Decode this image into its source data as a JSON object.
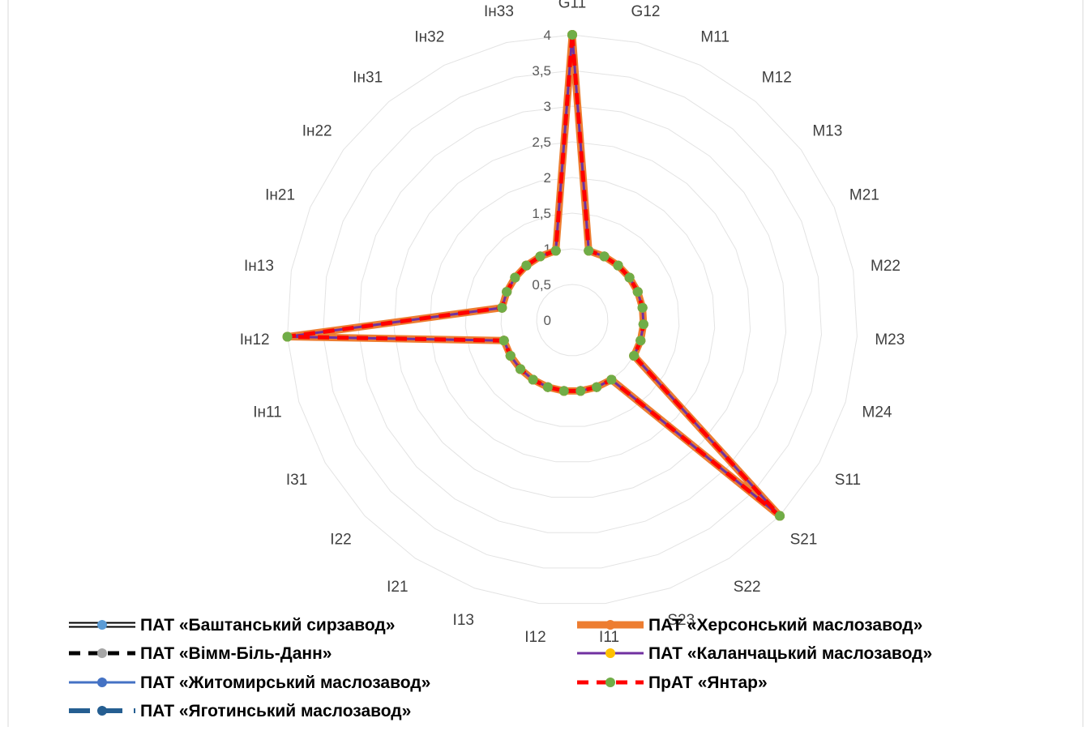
{
  "chart_data": {
    "type": "radar",
    "title": "",
    "axes": [
      "G11",
      "G12",
      "M11",
      "M12",
      "M13",
      "M21",
      "M22",
      "M23",
      "M24",
      "S11",
      "S21",
      "S22",
      "S23",
      "I11",
      "I12",
      "I13",
      "I21",
      "I22",
      "I31",
      "Ін11",
      "Ін12",
      "Ін13",
      "Ін21",
      "Ін22",
      "Ін31",
      "Ін32",
      "Ін33"
    ],
    "rlim": [
      0,
      4
    ],
    "ticks": [
      "0",
      "0,5",
      "1",
      "1,5",
      "2",
      "2,5",
      "3",
      "3,5",
      "4"
    ],
    "tick_values": [
      0,
      0.5,
      1,
      1.5,
      2,
      2.5,
      3,
      3.5,
      4
    ],
    "grid": true,
    "legend_position": "bottom",
    "series": [
      {
        "name": "ПАТ «Баштанський сирзавод»",
        "color": "#000000",
        "style": "double",
        "marker_color": "#5b9bd5",
        "values": [
          4,
          1,
          1,
          1,
          1,
          1,
          1,
          1,
          1,
          1,
          4,
          1,
          1,
          1,
          1,
          1,
          1,
          1,
          1,
          1,
          4,
          1,
          1,
          1,
          1,
          1,
          1
        ]
      },
      {
        "name": "ПАТ «Вімм-Біль-Данн»",
        "color": "#000000",
        "style": "dash",
        "marker_color": "#a5a5a5",
        "values": [
          4,
          1,
          1,
          1,
          1,
          1,
          1,
          1,
          1,
          1,
          4,
          1,
          1,
          1,
          1,
          1,
          1,
          1,
          1,
          1,
          4,
          1,
          1,
          1,
          1,
          1,
          1
        ]
      },
      {
        "name": "ПАТ «Житомирський маслозавод»",
        "color": "#4472c4",
        "style": "solid",
        "marker_color": "#4472c4",
        "values": [
          4,
          1,
          1,
          1,
          1,
          1,
          1,
          1,
          1,
          1,
          4,
          1,
          1,
          1,
          1,
          1,
          1,
          1,
          1,
          1,
          4,
          1,
          1,
          1,
          1,
          1,
          1
        ]
      },
      {
        "name": "ПАТ «Яготинський маслозавод»",
        "color": "#255e91",
        "style": "longdash",
        "marker_color": "#255e91",
        "values": [
          4,
          1,
          1,
          1,
          1,
          1,
          1,
          1,
          1,
          1,
          4,
          1,
          1,
          1,
          1,
          1,
          1,
          1,
          1,
          1,
          4,
          1,
          1,
          1,
          1,
          1,
          1
        ]
      },
      {
        "name": "ПАТ «Херсонський маслозавод»",
        "color": "#ed7d31",
        "style": "thick",
        "marker_color": "#ed7d31",
        "values": [
          4,
          1,
          1,
          1,
          1,
          1,
          1,
          1,
          1,
          1,
          4,
          1,
          1,
          1,
          1,
          1,
          1,
          1,
          1,
          1,
          4,
          1,
          1,
          1,
          1,
          1,
          1
        ]
      },
      {
        "name": "ПАТ «Каланчацький маслозавод»",
        "color": "#7030a0",
        "style": "solid",
        "marker_color": "#ffc000",
        "values": [
          4,
          1,
          1,
          1,
          1,
          1,
          1,
          1,
          1,
          1,
          4,
          1,
          1,
          1,
          1,
          1,
          1,
          1,
          1,
          1,
          4,
          1,
          1,
          1,
          1,
          1,
          1
        ]
      },
      {
        "name": "ПрАТ «Янтар»",
        "color": "#ff0000",
        "style": "dash",
        "marker_color": "#70ad47",
        "values": [
          4,
          1,
          1,
          1,
          1,
          1,
          1,
          1,
          1,
          1,
          4,
          1,
          1,
          1,
          1,
          1,
          1,
          1,
          1,
          1,
          4,
          1,
          1,
          1,
          1,
          1,
          1
        ]
      }
    ]
  }
}
